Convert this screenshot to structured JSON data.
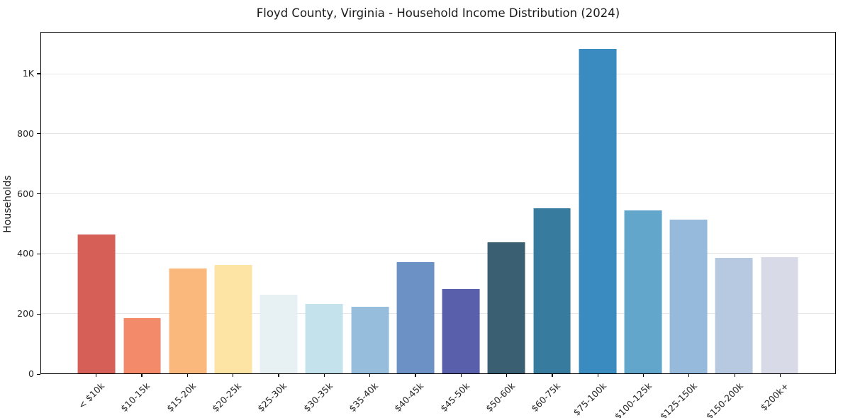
{
  "chart_data": {
    "type": "bar",
    "title": "Floyd County, Virginia - Household Income Distribution (2024)",
    "xlabel": "",
    "ylabel": "Households",
    "categories": [
      "< $10k",
      "$10-15k",
      "$15-20k",
      "$20-25k",
      "$25-30k",
      "$30-35k",
      "$35-40k",
      "$40-45k",
      "$45-50k",
      "$50-60k",
      "$60-75k",
      "$75-100k",
      "$100-125k",
      "$125-150k",
      "$150-200k",
      "$200k+"
    ],
    "values": [
      463,
      184,
      350,
      362,
      264,
      231,
      222,
      372,
      283,
      439,
      551,
      1085,
      544,
      514,
      386,
      389
    ],
    "bar_colors": [
      "#d65f57",
      "#f38b6b",
      "#fbb87c",
      "#fde4a5",
      "#e7f1f4",
      "#c4e2ec",
      "#96bedc",
      "#6c92c5",
      "#5a5fab",
      "#3a5f72",
      "#377b9f",
      "#3a8cc0",
      "#62a6cb",
      "#95badb",
      "#b7c9e0",
      "#d8dae7"
    ],
    "ylim": [
      0,
      1139
    ],
    "ytick_values": [
      0,
      200,
      400,
      600,
      800,
      1000
    ],
    "ytick_labels": [
      "0",
      "200",
      "400",
      "600",
      "800",
      "1K"
    ],
    "grid": "horizontal-only",
    "legend": "none",
    "colors": {
      "plot_background": "#ffffff",
      "grid_color": "#e6e6e6",
      "spine_color": "#000000",
      "tick_label_color": "#262626"
    }
  }
}
